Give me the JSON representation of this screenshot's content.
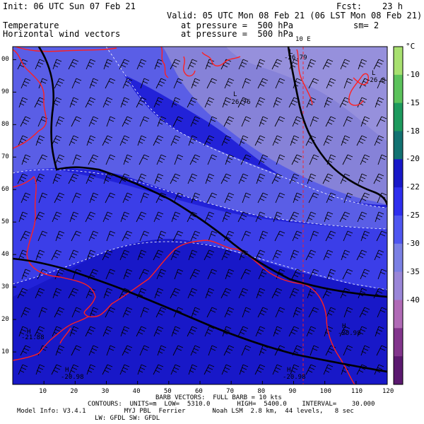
{
  "header": {
    "init": "Init: 06 UTC Sun 07 Feb 21",
    "fcst": "Fcst:    23 h",
    "valid": "Valid: 05 UTC Mon 08 Feb 21 (06 LST Mon 08 Feb 21)",
    "field1_name": "Temperature",
    "field1_level": "at pressure =  500 hPa",
    "smoothing": "sm= 2",
    "field2_name": "Horizontal wind vectors",
    "field2_level": "at pressure =  500 hPa"
  },
  "map": {
    "meridian_label": "10 E",
    "x_ticks": [
      10,
      20,
      30,
      40,
      50,
      60,
      70,
      80,
      90,
      100,
      110,
      120
    ],
    "y_ticks": [
      10,
      20,
      30,
      40,
      50,
      60,
      70,
      80,
      90,
      100
    ],
    "annotations": [
      {
        "text": "L",
        "extra": "-26.79"
      },
      {
        "text": "L",
        "extra": "-26.76"
      },
      {
        "text": "L",
        "extra": "-26.8"
      },
      {
        "text": "H",
        "extra": "-21.88"
      },
      {
        "text": "H",
        "extra": "-20.98"
      },
      {
        "text": "H",
        "extra": "-20.98"
      },
      {
        "text": "H",
        "extra": "-20.98"
      }
    ]
  },
  "colorbar": {
    "unit": "°C",
    "labels": [
      "-10",
      "-15",
      "-18",
      "-20",
      "-22",
      "-25",
      "-30",
      "-35",
      "-40"
    ],
    "colors": [
      "#a8e070",
      "#5cc25c",
      "#1e9a5e",
      "#127272",
      "#1818c8",
      "#2e2eee",
      "#4f56f0",
      "#7b80e4",
      "#9a86d8",
      "#b06ab6",
      "#82358c",
      "#5b1970"
    ]
  },
  "footer": {
    "barb_info": "BARB VECTORS:  FULL BARB = 10 kts",
    "contours": "CONTOURS:  UNITS=m  LOW=  5310.0       HIGH=  5400.0    INTERVAL=    30.000",
    "model_info": "Model Info: V3.4.1          MYJ PBL  Ferrier       Noah LSM  2.8 km,  44 levels,   8 sec",
    "physics": "LW: GFDL SW: GFDL"
  }
}
